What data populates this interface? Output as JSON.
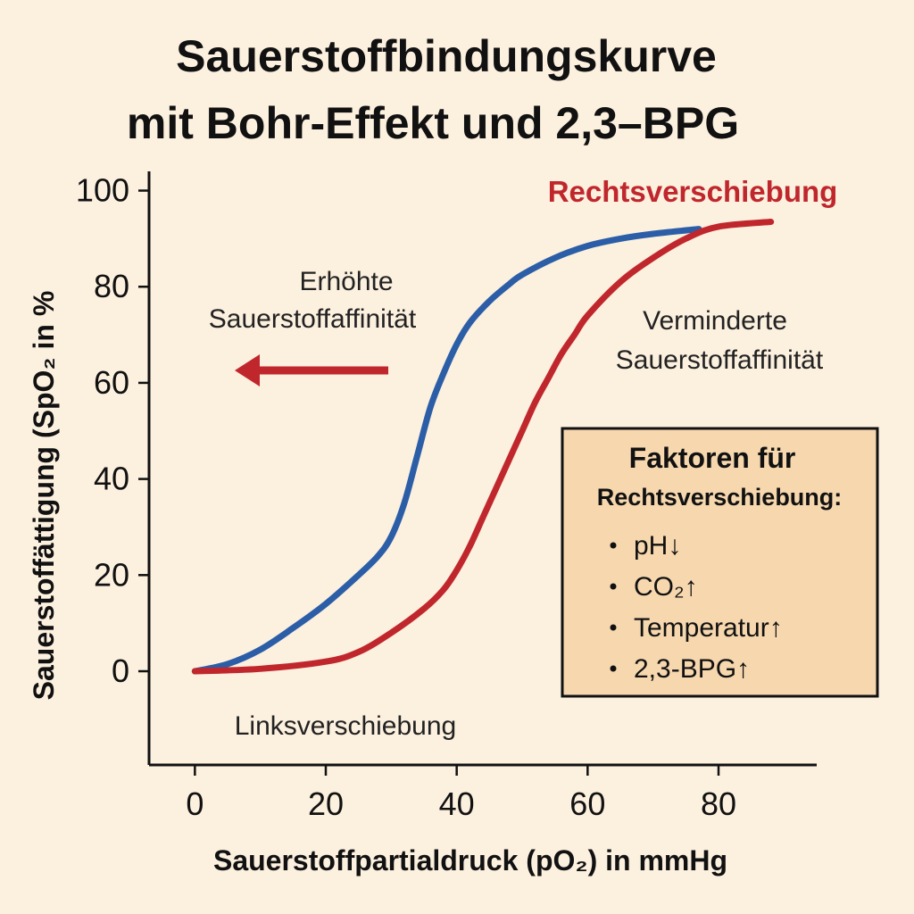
{
  "chart_data": {
    "type": "line",
    "title_line1": "Sauerstoffbindungskurve",
    "title_line2": "mit Bohr-Effekt und 2,3–BPG",
    "xlabel": "Sauerstoffpartialdruck (pO₂) in mmHg",
    "ylabel": "Sauerstoffättigung (SpO₂ in %",
    "xlim": [
      -7,
      95
    ],
    "ylim": [
      -19.5,
      104
    ],
    "xticks": [
      "0",
      "20",
      "40",
      "60",
      "80"
    ],
    "yticks": [
      "0",
      "20",
      "40",
      "60",
      "80",
      "100"
    ],
    "grid": false,
    "series": [
      {
        "color": "#2b5ea7",
        "x": [
          0,
          5,
          10,
          15,
          20,
          25,
          28,
          30,
          32,
          34,
          36,
          38,
          40,
          42,
          45,
          48,
          50,
          55,
          60,
          65,
          70,
          77
        ],
        "y": [
          0,
          1.5,
          4.5,
          9,
          14,
          20,
          24,
          28,
          35,
          45,
          55,
          62,
          68,
          72.5,
          77,
          80.5,
          82.5,
          86,
          88.5,
          90,
          91,
          92
        ]
      },
      {
        "color": "#c0272d",
        "x": [
          0,
          10,
          20,
          25,
          30,
          35,
          38,
          40,
          42,
          44,
          46,
          48,
          50,
          52,
          54,
          56,
          58,
          60,
          65,
          70,
          75,
          80,
          88
        ],
        "y": [
          0,
          0.5,
          2,
          4,
          8,
          13,
          17,
          21,
          26,
          32,
          38,
          44,
          50,
          56,
          61,
          66,
          70,
          74,
          81,
          86,
          90,
          92.5,
          93.5
        ]
      }
    ],
    "annotations": {
      "left_shift_line1": "Erhöhte",
      "left_shift_line2": "Sauerstoffaffinität",
      "right_shift_line1": "Verminderte",
      "right_shift_line2": "Sauerstoffaffinität",
      "right_shift_label": "Rechtsverschiebung",
      "left_shift_label": "Linksverschiebung"
    },
    "factors_box": {
      "title": "Faktoren für",
      "subtitle": "Rechtsverschiebung:",
      "items": [
        "pH↓",
        "CO₂↑",
        "Temperatur↑",
        "2,3-BPG↑"
      ]
    },
    "colors": {
      "red": "#c0272d",
      "blue": "#2b5ea7",
      "box_fill": "#f6d7ae",
      "background": "#fcf0df"
    }
  }
}
